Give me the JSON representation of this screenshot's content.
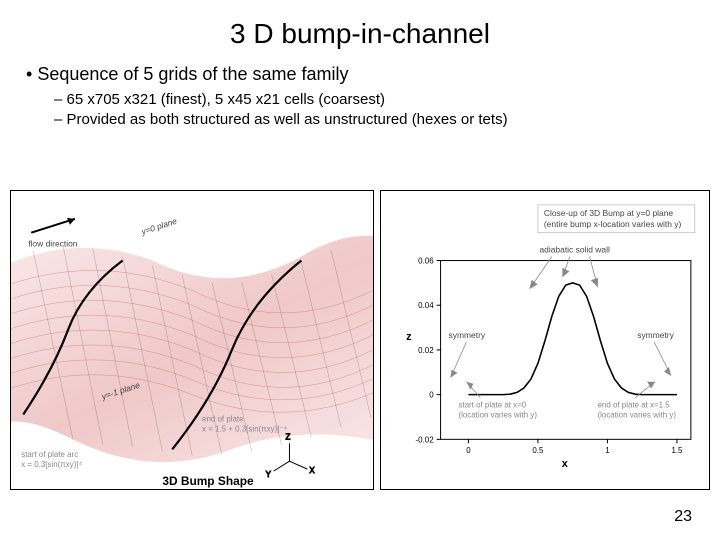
{
  "title": "3 D bump-in-channel",
  "bullet_main": "Sequence of 5 grids of the same family",
  "bullet_sub1": "65 x705 x321 (finest), 5 x45 x21 cells (coarsest)",
  "bullet_sub2": "Provided as both structured as well as unstructured (hexes or tets)",
  "page_number": "23",
  "left_figure": {
    "caption": "3D Bump Shape",
    "flow_label": "flow direction",
    "plane_y0": "y=0 plane",
    "plane_ym1": "y=-1 plane",
    "start_arc_label1": "start of plate arc",
    "start_arc_label2": "x = 0.3[sin(πxy)]⁴",
    "end_arc_label1": "end of plate",
    "end_arc_label2": "x = 1.5 + 0.3[sin(πxy)]⁻⁴",
    "axis_labels": [
      "X",
      "Y",
      "Z"
    ],
    "mesh_color_front": "#d84c4c",
    "mesh_color_back": "#222222",
    "bump_fill": "#f9e4e4"
  },
  "right_figure": {
    "type": "line",
    "title_line1": "Close-up of 3D Bump at y=0 plane",
    "title_line2": "(entire bump x-location varies with y)",
    "xlabel": "x",
    "ylabel": "z",
    "xlim": [
      -0.2,
      1.6
    ],
    "ylim": [
      -0.02,
      0.06
    ],
    "xticks": [
      0,
      0.5,
      1,
      1.5
    ],
    "yticks": [
      -0.02,
      0,
      0.02,
      0.04,
      0.06
    ],
    "xtick_labels": [
      "0",
      "0.5",
      "1",
      "1.5"
    ],
    "ytick_labels": [
      "-0.02",
      "0",
      "0.02",
      "0.04",
      "0.06"
    ],
    "curve_color": "#000000",
    "curve_points": [
      [
        0.0,
        0.0
      ],
      [
        0.05,
        0.0
      ],
      [
        0.1,
        0.0
      ],
      [
        0.15,
        0.0
      ],
      [
        0.2,
        0.0
      ],
      [
        0.25,
        0.0
      ],
      [
        0.3,
        0.0002
      ],
      [
        0.35,
        0.001
      ],
      [
        0.4,
        0.003
      ],
      [
        0.45,
        0.007
      ],
      [
        0.5,
        0.014
      ],
      [
        0.55,
        0.024
      ],
      [
        0.6,
        0.035
      ],
      [
        0.65,
        0.044
      ],
      [
        0.7,
        0.049
      ],
      [
        0.75,
        0.05
      ],
      [
        0.8,
        0.049
      ],
      [
        0.85,
        0.044
      ],
      [
        0.9,
        0.035
      ],
      [
        0.95,
        0.024
      ],
      [
        1.0,
        0.014
      ],
      [
        1.05,
        0.007
      ],
      [
        1.1,
        0.003
      ],
      [
        1.15,
        0.001
      ],
      [
        1.2,
        0.0002
      ],
      [
        1.25,
        0.0
      ],
      [
        1.3,
        0.0
      ],
      [
        1.35,
        0.0
      ],
      [
        1.4,
        0.0
      ],
      [
        1.45,
        0.0
      ],
      [
        1.5,
        0.0
      ]
    ],
    "annotations": {
      "adiabatic": "adiabatic solid wall",
      "symmetry": "symmetry",
      "start_plate1": "start of plate at x=0",
      "start_plate2": "(location varies with y)",
      "end_plate1": "end of plate at x=1.5",
      "end_plate2": "(location varies with y)"
    },
    "background_color": "#ffffff",
    "line_width": 1.6
  }
}
